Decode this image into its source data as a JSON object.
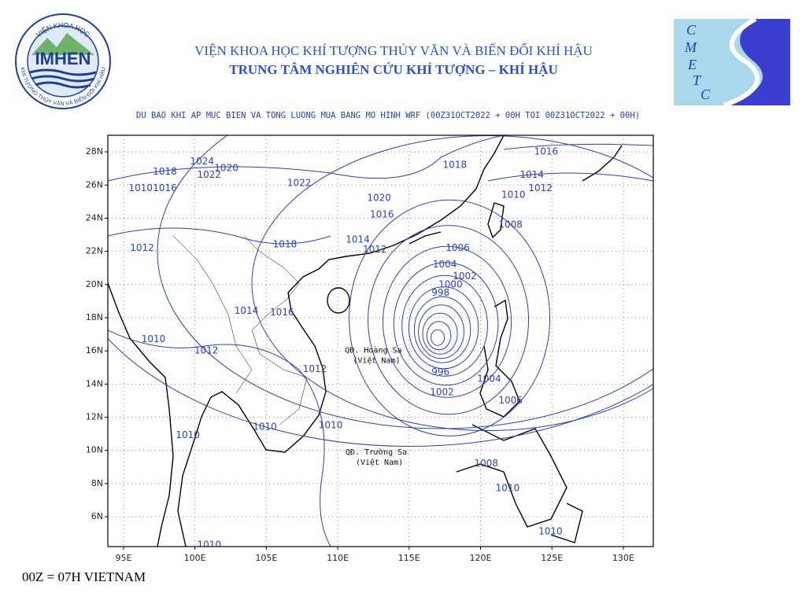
{
  "header": {
    "institute": "VIỆN KHOA HỌC KHÍ TƯỢNG THỦY VĂN VÀ BIẾN ĐỔI KHÍ HẬU",
    "center": "TRUNG TÂM NGHIÊN CỨU KHÍ TƯỢNG – KHÍ HẬU",
    "subtitle": "DU BAO KHI AP MUC BIEN VA TONG LUONG MUA BANG MO HINH WRF (00Z31OCT2022 + 00H TOI 00Z31OCT2022 + 00H)"
  },
  "logo_left": {
    "name": "IMHEN",
    "ring_top": "VIỆN KHOA HỌC",
    "ring_bottom": "KHÍ TƯỢNG THỦY VĂN VÀ BIẾN ĐỔI KHÍ HẬU"
  },
  "logo_right": {
    "letters": [
      "C",
      "M",
      "E",
      "T",
      "C"
    ]
  },
  "map": {
    "type": "contour",
    "lonlim": [
      93.9,
      132.1
    ],
    "latlim": [
      4.2,
      29
    ],
    "grid": true,
    "contour_color": "#2b3fbf",
    "lonticks": [
      {
        "value": 95,
        "label": "95E"
      },
      {
        "value": 100,
        "label": "100E"
      },
      {
        "value": 105,
        "label": "105E"
      },
      {
        "value": 110,
        "label": "110E"
      },
      {
        "value": 115,
        "label": "115E"
      },
      {
        "value": 120,
        "label": "120E"
      },
      {
        "value": 125,
        "label": "125E"
      },
      {
        "value": 130,
        "label": "130E"
      }
    ],
    "latticks": [
      {
        "value": 6,
        "label": "6N"
      },
      {
        "value": 8,
        "label": "8N"
      },
      {
        "value": 10,
        "label": "10N"
      },
      {
        "value": 12,
        "label": "12N"
      },
      {
        "value": 14,
        "label": "14N"
      },
      {
        "value": 16,
        "label": "16N"
      },
      {
        "value": 18,
        "label": "18N"
      },
      {
        "value": 20,
        "label": "20N"
      },
      {
        "value": 22,
        "label": "22N"
      },
      {
        "value": 24,
        "label": "24N"
      },
      {
        "value": 26,
        "label": "26N"
      },
      {
        "value": 28,
        "label": "28N"
      }
    ],
    "contour_labels": [
      {
        "value": 1016,
        "lon": 124.6,
        "lat": 28.0
      },
      {
        "value": 1018,
        "lon": 118.2,
        "lat": 27.2
      },
      {
        "value": 1024,
        "lon": 100.5,
        "lat": 27.4
      },
      {
        "value": 1020,
        "lon": 102.2,
        "lat": 27.0
      },
      {
        "value": 1018,
        "lon": 97.9,
        "lat": 26.8
      },
      {
        "value": 1022,
        "lon": 101.0,
        "lat": 26.6
      },
      {
        "value": 1014,
        "lon": 123.6,
        "lat": 26.6
      },
      {
        "value": 1022,
        "lon": 107.3,
        "lat": 26.1
      },
      {
        "value": 1012,
        "lon": 124.2,
        "lat": 25.8
      },
      {
        "value": 1016,
        "lon": 97.9,
        "lat": 25.8
      },
      {
        "value": 1010,
        "lon": 96.2,
        "lat": 25.8
      },
      {
        "value": 1010,
        "lon": 122.3,
        "lat": 25.4
      },
      {
        "value": 1020,
        "lon": 112.9,
        "lat": 25.2
      },
      {
        "value": 1016,
        "lon": 113.1,
        "lat": 24.2
      },
      {
        "value": 1008,
        "lon": 122.1,
        "lat": 23.6
      },
      {
        "value": 1014,
        "lon": 111.4,
        "lat": 22.7
      },
      {
        "value": 1012,
        "lon": 112.6,
        "lat": 22.1
      },
      {
        "value": 1018,
        "lon": 106.3,
        "lat": 22.4
      },
      {
        "value": 1012,
        "lon": 96.3,
        "lat": 22.2
      },
      {
        "value": 1006,
        "lon": 118.4,
        "lat": 22.2
      },
      {
        "value": 1004,
        "lon": 117.5,
        "lat": 21.2
      },
      {
        "value": 1002,
        "lon": 118.9,
        "lat": 20.5
      },
      {
        "value": 1000,
        "lon": 117.9,
        "lat": 20.0
      },
      {
        "value": 998,
        "lon": 117.2,
        "lat": 19.5
      },
      {
        "value": 1014,
        "lon": 103.6,
        "lat": 18.4
      },
      {
        "value": 1016,
        "lon": 106.1,
        "lat": 18.3
      },
      {
        "value": 1010,
        "lon": 97.1,
        "lat": 16.7
      },
      {
        "value": 1012,
        "lon": 100.8,
        "lat": 16.0
      },
      {
        "value": 996,
        "lon": 117.2,
        "lat": 14.7
      },
      {
        "value": 1012,
        "lon": 108.4,
        "lat": 14.9
      },
      {
        "value": 1004,
        "lon": 120.6,
        "lat": 14.3
      },
      {
        "value": 1002,
        "lon": 117.3,
        "lat": 13.5
      },
      {
        "value": 1006,
        "lon": 122.1,
        "lat": 13.0
      },
      {
        "value": 1010,
        "lon": 99.5,
        "lat": 10.9
      },
      {
        "value": 1010,
        "lon": 104.9,
        "lat": 11.4
      },
      {
        "value": 1010,
        "lon": 109.5,
        "lat": 11.5
      },
      {
        "value": 1008,
        "lon": 120.4,
        "lat": 9.2
      },
      {
        "value": 1010,
        "lon": 121.9,
        "lat": 7.7
      },
      {
        "value": 1010,
        "lon": 124.9,
        "lat": 5.1
      },
      {
        "value": 1010,
        "lon": 101.0,
        "lat": 4.3
      }
    ],
    "low_center": {
      "lon": 117.0,
      "lat": 16.8
    },
    "places": [
      {
        "name": "QĐ. Hoàng Sa",
        "note": "(Việt Nam)",
        "lon": 112.5,
        "lat": 15.75
      },
      {
        "name": "QĐ. Trường Sa",
        "note": "(Việt Nam)",
        "lon": 112.7,
        "lat": 9.6
      }
    ]
  },
  "footer": "00Z = 07H VIETNAM"
}
